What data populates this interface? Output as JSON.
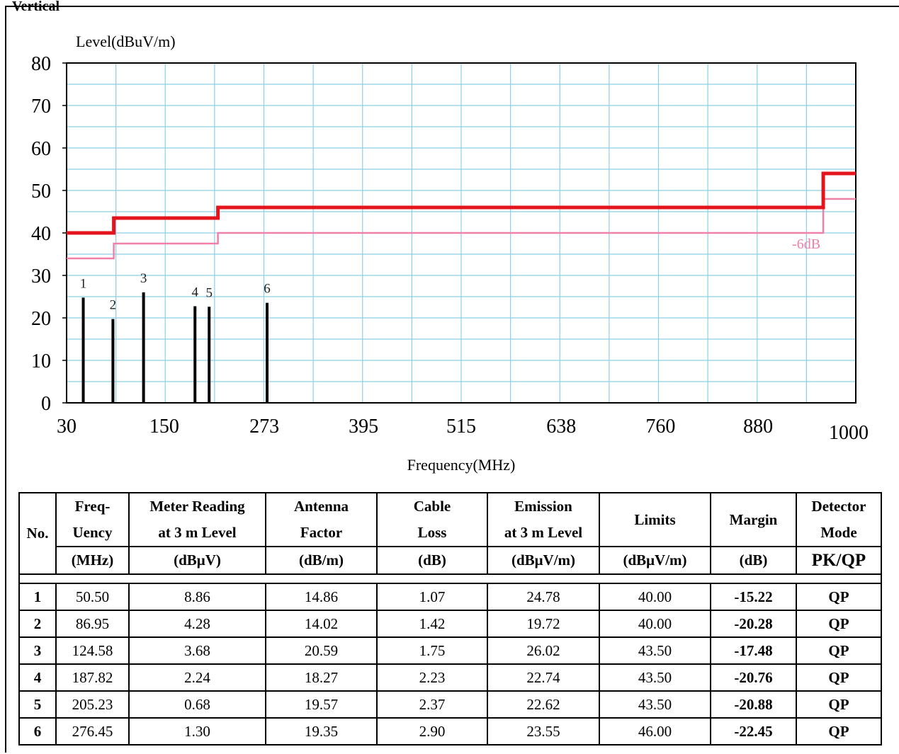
{
  "clipped_header": "Vertical",
  "chart_data": {
    "type": "line",
    "ylabel": "Level(dBuV/m)",
    "xlabel": "Frequency(MHz)",
    "ylim": [
      0,
      80
    ],
    "xlim": [
      30,
      1000
    ],
    "y_ticks": [
      "0",
      "10",
      "20",
      "30",
      "40",
      "50",
      "60",
      "70",
      "80"
    ],
    "x_ticks": [
      {
        "value": 30,
        "label": "30"
      },
      {
        "value": 150,
        "label": "150"
      },
      {
        "value": 273,
        "label": "273"
      },
      {
        "value": 395,
        "label": "395"
      },
      {
        "value": 515,
        "label": "515"
      },
      {
        "value": 638,
        "label": "638"
      },
      {
        "value": 760,
        "label": "760"
      },
      {
        "value": 880,
        "label": "880"
      },
      {
        "value": 1000,
        "label": "1000"
      }
    ],
    "grid": true,
    "limit_line": {
      "color": "#e3141c",
      "steps": [
        [
          30,
          40
        ],
        [
          88,
          43.5
        ],
        [
          216,
          46
        ],
        [
          960,
          54
        ],
        [
          1000,
          54
        ]
      ]
    },
    "margin_line": {
      "color": "#f080a8",
      "label": "-6dB",
      "steps": [
        [
          30,
          34
        ],
        [
          88,
          37.5
        ],
        [
          216,
          40
        ],
        [
          960,
          48
        ],
        [
          1000,
          48
        ]
      ]
    },
    "markers": [
      {
        "label": "1",
        "freq": 50.5,
        "level": 24.78
      },
      {
        "label": "2",
        "freq": 86.95,
        "level": 19.72
      },
      {
        "label": "3",
        "freq": 124.58,
        "level": 26.02
      },
      {
        "label": "4",
        "freq": 187.82,
        "level": 22.74
      },
      {
        "label": "5",
        "freq": 205.23,
        "level": 22.62
      },
      {
        "label": "6",
        "freq": 276.45,
        "level": 23.55
      }
    ],
    "colors": {
      "grid": "#8ad0e8",
      "marker": "#000000",
      "axis": "#000000"
    }
  },
  "table": {
    "headers": [
      {
        "top": "No.",
        "bottom": ""
      },
      {
        "top": "Freq-\nUency",
        "bottom": "(MHz)"
      },
      {
        "top": "Meter Reading\nat 3 m Level",
        "bottom": "(dBμV)"
      },
      {
        "top": "Antenna\nFactor",
        "bottom": "(dB/m)"
      },
      {
        "top": "Cable\nLoss",
        "bottom": "(dB)"
      },
      {
        "top": "Emission\nat 3 m Level",
        "bottom": "(dBμV/m)"
      },
      {
        "top": "Limits",
        "bottom": "(dBμV/m)"
      },
      {
        "top": "Margin",
        "bottom": "(dB)"
      },
      {
        "top": "Detector\nMode",
        "bottom": "PK/QP"
      }
    ],
    "rows": [
      [
        "1",
        "50.50",
        "8.86",
        "14.86",
        "1.07",
        "24.78",
        "40.00",
        "-15.22",
        "QP"
      ],
      [
        "2",
        "86.95",
        "4.28",
        "14.02",
        "1.42",
        "19.72",
        "40.00",
        "-20.28",
        "QP"
      ],
      [
        "3",
        "124.58",
        "3.68",
        "20.59",
        "1.75",
        "26.02",
        "43.50",
        "-17.48",
        "QP"
      ],
      [
        "4",
        "187.82",
        "2.24",
        "18.27",
        "2.23",
        "22.74",
        "43.50",
        "-20.76",
        "QP"
      ],
      [
        "5",
        "205.23",
        "0.68",
        "19.57",
        "2.37",
        "22.62",
        "43.50",
        "-20.88",
        "QP"
      ],
      [
        "6",
        "276.45",
        "1.30",
        "19.35",
        "2.90",
        "23.55",
        "46.00",
        "-22.45",
        "QP"
      ]
    ]
  }
}
